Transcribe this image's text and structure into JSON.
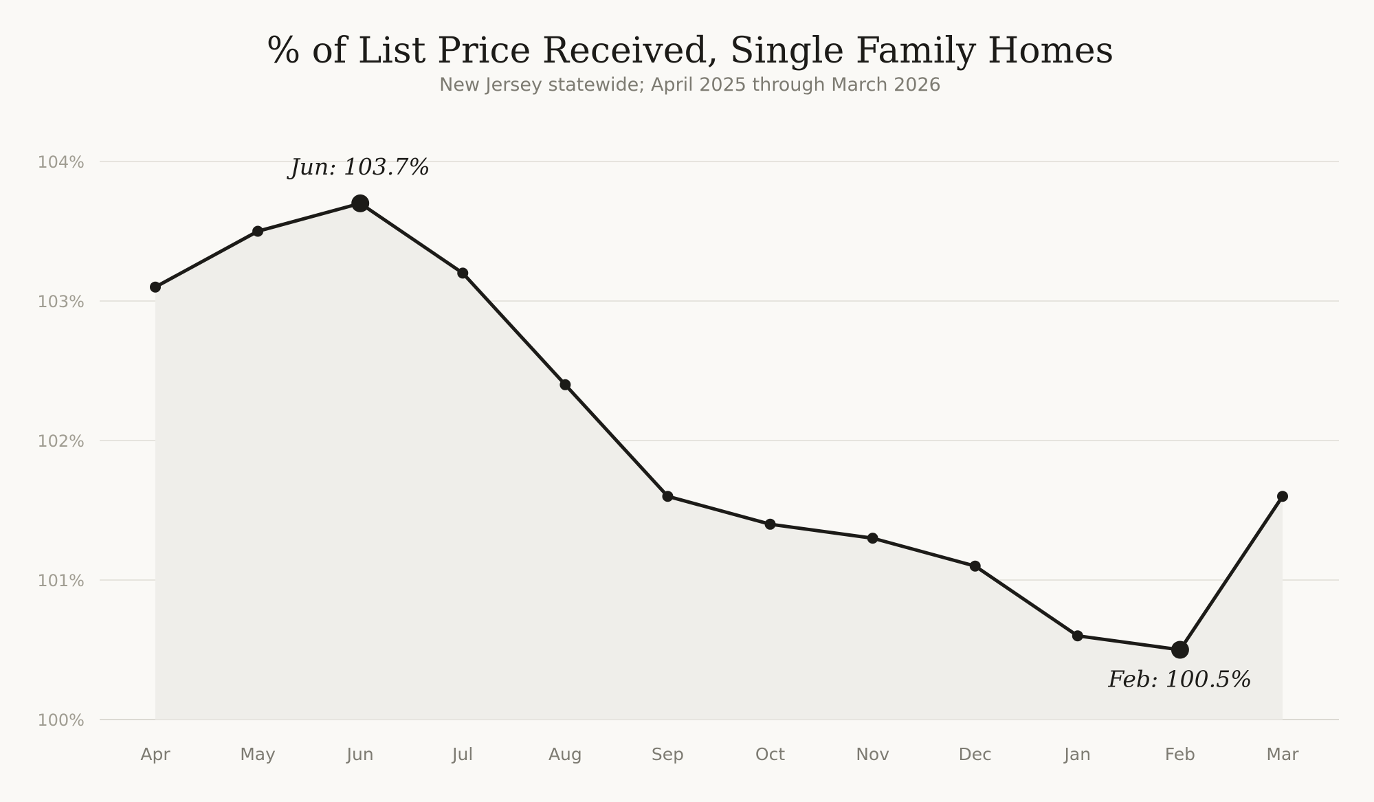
{
  "chart_data": {
    "type": "line",
    "title": "% of List Price Received, Single Family Homes",
    "subtitle": "New Jersey statewide; April 2025 through March 2026",
    "xlabel": "",
    "ylabel": "",
    "categories": [
      "Apr",
      "May",
      "Jun",
      "Jul",
      "Aug",
      "Sep",
      "Oct",
      "Nov",
      "Dec",
      "Jan",
      "Feb",
      "Mar"
    ],
    "values": [
      103.1,
      103.5,
      103.7,
      103.2,
      102.4,
      101.6,
      101.4,
      101.3,
      101.1,
      100.6,
      100.5,
      101.6
    ],
    "ylim": [
      100,
      104
    ],
    "yticks": [
      100,
      101,
      102,
      103,
      104
    ],
    "ytick_labels": [
      "100%",
      "101%",
      "102%",
      "103%",
      "104%"
    ],
    "grid": true,
    "area_fill": true,
    "annotations": [
      {
        "index": 2,
        "text": "Jun: 103.7%",
        "placement": "above"
      },
      {
        "index": 10,
        "text": "Feb: 100.5%",
        "placement": "below"
      }
    ],
    "colors": {
      "line": "#1c1b18",
      "fill": "#efeeea",
      "background": "#faf9f6"
    }
  }
}
